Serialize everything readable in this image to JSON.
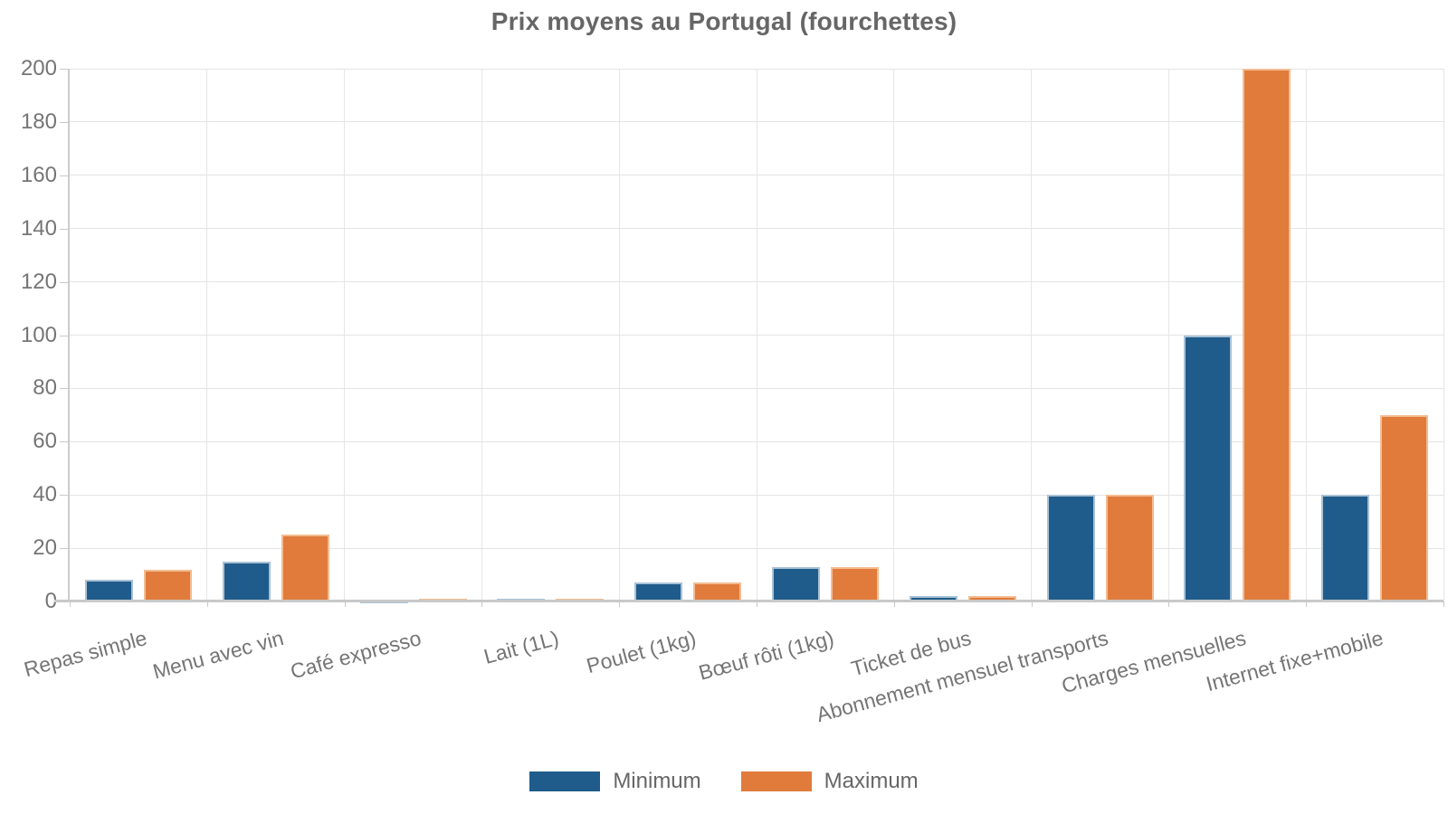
{
  "chart_data": {
    "type": "bar",
    "title": "Prix moyens au Portugal (fourchettes)",
    "categories": [
      "Repas simple",
      "Menu avec vin",
      "Café expresso",
      "Lait (1L)",
      "Poulet (1kg)",
      "Bœuf rôti (1kg)",
      "Ticket de bus",
      "Abonnement mensuel transports",
      "Charges mensuelles",
      "Internet fixe+mobile"
    ],
    "series": [
      {
        "name": "Minimum",
        "color": "#1f5c8b",
        "border_color": "#a9c2d6",
        "values": [
          8,
          15,
          0.7,
          1,
          7,
          13,
          2,
          40,
          100,
          40
        ]
      },
      {
        "name": "Maximum",
        "color": "#e07b3c",
        "border_color": "#f3bd93",
        "values": [
          12,
          25,
          1,
          1,
          7,
          13,
          2,
          40,
          200,
          70
        ]
      }
    ],
    "xlabel": "",
    "ylabel": "",
    "ylim": [
      0,
      200
    ],
    "yticks": [
      0,
      20,
      40,
      60,
      80,
      100,
      120,
      140,
      160,
      180,
      200
    ],
    "grid": true,
    "legend_position": "bottom",
    "axis_text_color": "#757575",
    "title_color": "#666666",
    "gridline_color": "#e3e3e3"
  }
}
